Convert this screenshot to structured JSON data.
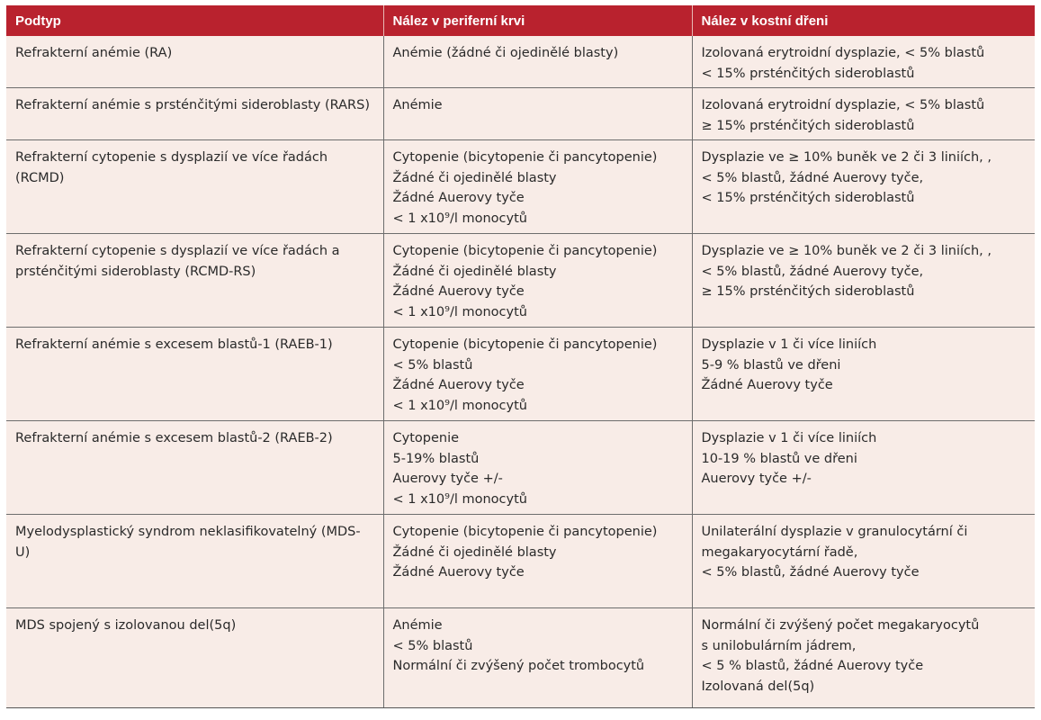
{
  "table": {
    "headers": [
      "Podtyp",
      "Nález v periferní krvi",
      "Nález v kostní dřeni"
    ],
    "rows": [
      {
        "subtype": "Refrakterní anémie (RA)",
        "blood": [
          "Anémie (žádné či ojedinělé blasty)"
        ],
        "marrow": [
          "Izolovaná erytroidní dysplazie, < 5% blastů",
          "< 15% prsténčitých sideroblastů"
        ]
      },
      {
        "subtype": "Refrakterní anémie s prsténčitými sideroblasty (RARS)",
        "blood": [
          "Anémie"
        ],
        "marrow": [
          "Izolovaná erytroidní dysplazie, < 5% blastů",
          "≥ 15% prsténčitých sideroblastů"
        ]
      },
      {
        "subtype": "Refrakterní cytopenie s dysplazií ve více řadách (RCMD)",
        "blood": [
          "Cytopenie (bicytopenie či pancytopenie)",
          "Žádné či ojedinělé blasty",
          "Žádné Auerovy tyče",
          "< 1 x10⁹/l monocytů"
        ],
        "marrow": [
          "Dysplazie ve ≥ 10% buněk ve 2 či 3 liniích, ,",
          "< 5% blastů, žádné Auerovy tyče,",
          "< 15% prsténčitých sideroblastů"
        ]
      },
      {
        "subtype": "Refrakterní cytopenie s dysplazií ve více řadách a prsténčitými sideroblasty (RCMD-RS)",
        "blood": [
          "Cytopenie (bicytopenie či pancytopenie)",
          "Žádné či ojedinělé blasty",
          "Žádné Auerovy tyče",
          "< 1 x10⁹/l monocytů"
        ],
        "marrow": [
          "Dysplazie ve ≥ 10% buněk ve 2 či 3 liniích, ,",
          "< 5% blastů, žádné Auerovy tyče,",
          "≥ 15% prsténčitých sideroblastů"
        ]
      },
      {
        "subtype": "Refrakterní anémie s excesem blastů-1 (RAEB-1)",
        "blood": [
          "Cytopenie (bicytopenie či pancytopenie)",
          "< 5% blastů",
          "Žádné Auerovy tyče",
          "< 1 x10⁹/l monocytů"
        ],
        "marrow": [
          "Dysplazie v 1 či více liniích",
          "5-9 % blastů ve dřeni",
          "Žádné Auerovy tyče"
        ]
      },
      {
        "subtype": "Refrakterní anémie s excesem blastů-2 (RAEB-2)",
        "blood": [
          "Cytopenie",
          "5-19% blastů",
          "Auerovy tyče +/-",
          "< 1 x10⁹/l monocytů"
        ],
        "marrow": [
          "Dysplazie v 1 či více liniích",
          "10-19 % blastů ve dřeni",
          "Auerovy tyče +/-"
        ]
      },
      {
        "subtype": "Myelodysplastický syndrom neklasifikovatelný (MDS-U)",
        "blood": [
          "Cytopenie (bicytopenie či pancytopenie)",
          "Žádné či ojedinělé blasty",
          "Žádné Auerovy tyče"
        ],
        "marrow": [
          "Unilaterální dysplazie v granulocytární či",
          "megakaryocytární řadě,",
          "< 5% blastů, žádné Auerovy tyče"
        ]
      },
      {
        "subtype": "MDS spojený s izolovanou del(5q)",
        "blood": [
          "Anémie",
          "< 5% blastů",
          "Normální či zvýšený počet trombocytů"
        ],
        "marrow": [
          "Normální či zvýšený počet megakaryocytů",
          "s unilobulárním jádrem,",
          "< 5 % blastů, žádné Auerovy tyče",
          "Izolovaná del(5q)"
        ]
      }
    ]
  },
  "colors": {
    "header_bg": "#b9222e",
    "header_text": "#ffffff",
    "cell_bg": "#f8ece7",
    "border": "#6d6d6d"
  }
}
